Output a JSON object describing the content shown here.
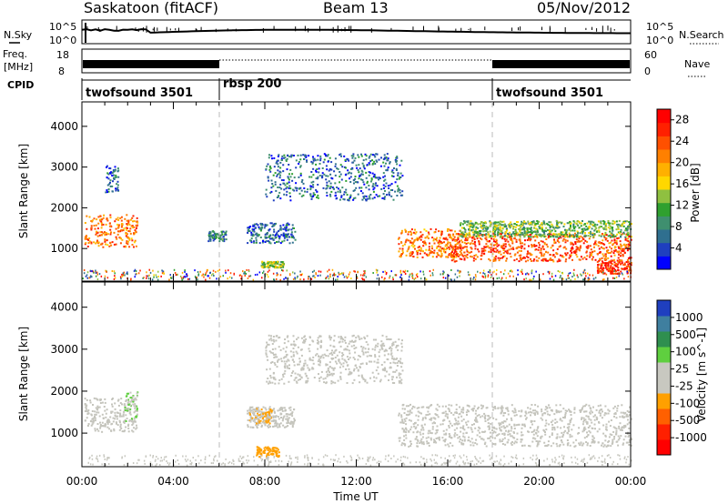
{
  "header": {
    "station": "Saskatoon (fitACF)",
    "beam": "Beam 13",
    "date": "05/Nov/2012"
  },
  "noise_panel": {
    "left_label": "N.Sky",
    "right_label": "N.Search",
    "left_ticks": [
      "10^5",
      "10^0"
    ],
    "right_ticks": [
      "10^5",
      "10^0"
    ]
  },
  "freq_panel": {
    "left_label_line1": "Freq.",
    "left_label_line2": "[MHz]",
    "left_ticks": [
      "18",
      "8"
    ],
    "right_label": "Nave",
    "right_ticks": [
      "60",
      "0"
    ]
  },
  "cpid": {
    "label": "CPID",
    "segments": [
      {
        "name": "twofsound 3501",
        "start_hour": 0,
        "end_hour": 6
      },
      {
        "name": "rbsp 200",
        "start_hour": 6,
        "end_hour": 18
      },
      {
        "name": "twofsound 3501",
        "start_hour": 18,
        "end_hour": 24
      }
    ]
  },
  "time_axis": {
    "label": "Time UT",
    "ticks": [
      "00:00",
      "04:00",
      "08:00",
      "12:00",
      "16:00",
      "20:00",
      "00:00"
    ]
  },
  "power_colorbar": {
    "label": "Power [dB]",
    "ticks": [
      "28",
      "24",
      "20",
      "16",
      "12",
      "8",
      "4"
    ],
    "colors": [
      "#0000ff",
      "#1f3fbf",
      "#2f6f8f",
      "#3f8f6f",
      "#2fa02f",
      "#8fc040",
      "#ffd700",
      "#ffb000",
      "#ff8000",
      "#ff5000",
      "#ff2000",
      "#ff0000"
    ]
  },
  "velocity_colorbar": {
    "label": "Velocity [m s^-1]",
    "ticks": [
      "1000",
      "500",
      "100",
      "25",
      "-25",
      "-100",
      "-500",
      "-1000"
    ],
    "colors": [
      "#1f3fbf",
      "#3f7f9f",
      "#2f8f4f",
      "#5fcf3f",
      "#c8c8c0",
      "#c8c8c0",
      "#ffa000",
      "#ff6000",
      "#ff2000",
      "#ff0000"
    ]
  },
  "colors": {
    "ground_scatter": "#c4c4bc",
    "dashed_lines": "#bbbbbb"
  },
  "chart_data": {
    "type": "heatmap",
    "title": "Saskatoon (fitACF) Beam 13 05/Nov/2012",
    "x": {
      "label": "Time UT",
      "range_hours": [
        0,
        24
      ]
    },
    "y": {
      "label": "Slant Range [km]",
      "range": [
        200,
        4600
      ],
      "ticks": [
        1000,
        2000,
        3000,
        4000
      ]
    },
    "mode_change_hours": [
      6,
      18
    ],
    "power_panel": {
      "ylabel": "Slant Range [km]",
      "zlabel": "Power [dB]",
      "zrange": [
        0,
        30
      ],
      "regions": [
        {
          "t0": 0.1,
          "t1": 2.4,
          "r0": 1050,
          "r1": 1850,
          "p": 22
        },
        {
          "t0": 1.0,
          "t1": 1.6,
          "r0": 2400,
          "r1": 3100,
          "p": 6
        },
        {
          "t0": 5.5,
          "t1": 6.3,
          "r0": 1200,
          "r1": 1450,
          "p": 8
        },
        {
          "t0": 7.2,
          "t1": 9.3,
          "r0": 1150,
          "r1": 1650,
          "p": 6
        },
        {
          "t0": 7.8,
          "t1": 8.8,
          "r0": 550,
          "r1": 700,
          "p": 14
        },
        {
          "t0": 8.0,
          "t1": 14.0,
          "r0": 2200,
          "r1": 3350,
          "p": 6
        },
        {
          "t0": 13.8,
          "t1": 16.5,
          "r0": 800,
          "r1": 1500,
          "p": 22
        },
        {
          "t0": 16.0,
          "t1": 24.0,
          "r0": 700,
          "r1": 1400,
          "p": 24
        },
        {
          "t0": 16.5,
          "t1": 24.0,
          "r0": 1300,
          "r1": 1700,
          "p": 12
        },
        {
          "t0": 22.5,
          "t1": 24.0,
          "r0": 400,
          "r1": 700,
          "p": 26
        }
      ]
    },
    "velocity_panel": {
      "ylabel": "Slant Range [km]",
      "zlabel": "Velocity [m s^-1]",
      "zrange": [
        -1000,
        1000
      ],
      "regions": [
        {
          "t0": 0.1,
          "t1": 2.4,
          "r0": 1050,
          "r1": 1850,
          "v": 0,
          "ground": true
        },
        {
          "t0": 1.8,
          "t1": 2.4,
          "r0": 1300,
          "r1": 2000,
          "v": 200
        },
        {
          "t0": 7.2,
          "t1": 9.3,
          "r0": 1150,
          "r1": 1650,
          "v": 0,
          "ground": true
        },
        {
          "t0": 7.3,
          "t1": 8.3,
          "r0": 1250,
          "r1": 1600,
          "v": -200
        },
        {
          "t0": 7.6,
          "t1": 8.6,
          "r0": 450,
          "r1": 700,
          "v": -300
        },
        {
          "t0": 8.0,
          "t1": 14.0,
          "r0": 2200,
          "r1": 3350,
          "v": 0,
          "ground": true
        },
        {
          "t0": 13.8,
          "t1": 24.0,
          "r0": 700,
          "r1": 1700,
          "v": 0,
          "ground": true
        }
      ]
    }
  }
}
